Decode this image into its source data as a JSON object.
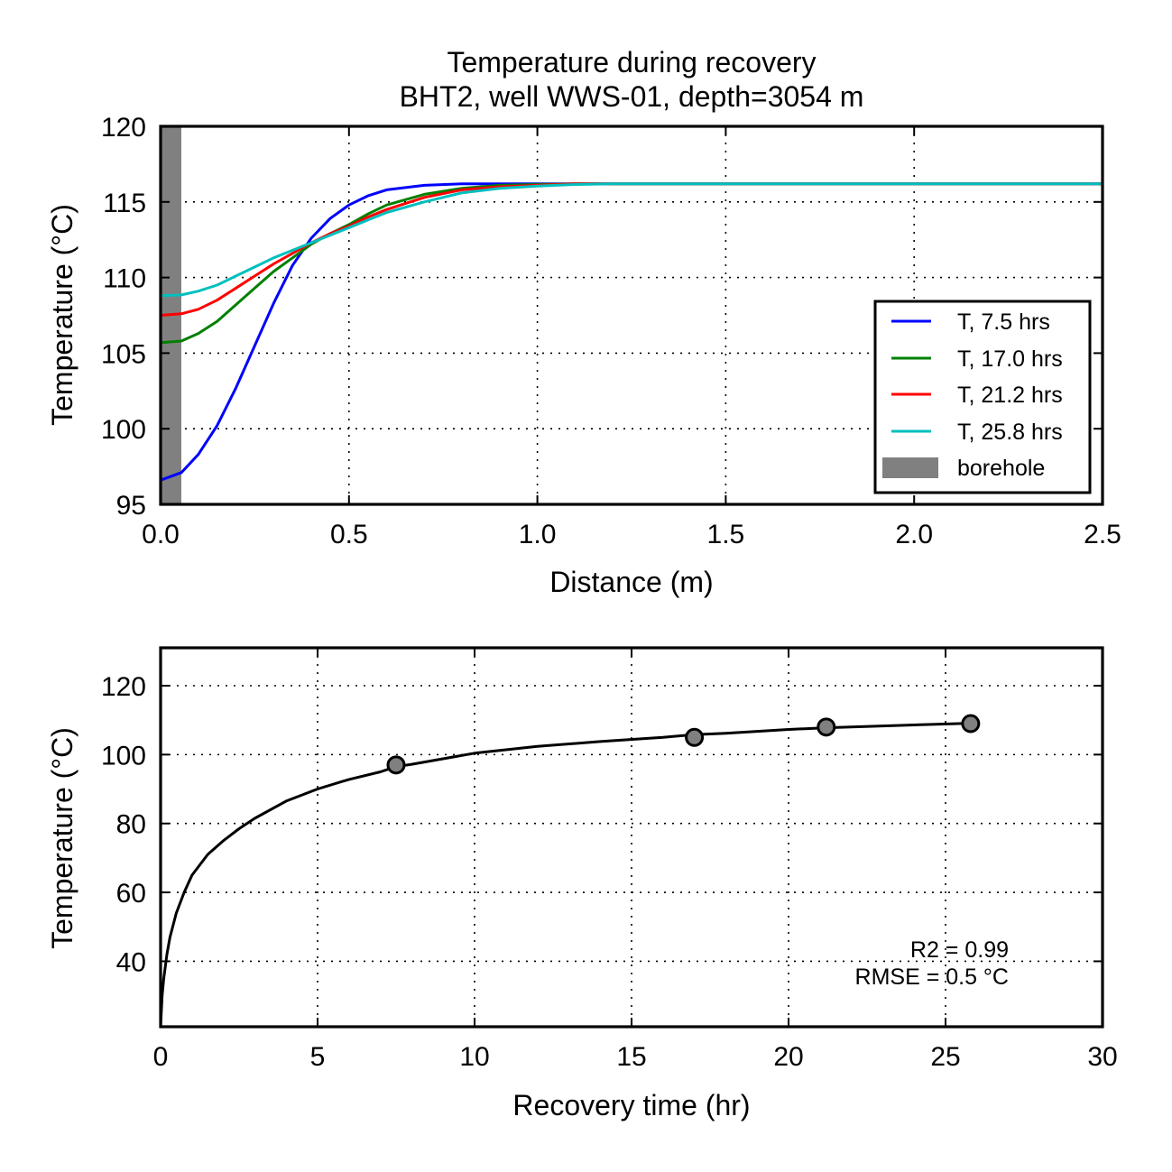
{
  "chart_data": [
    {
      "type": "line",
      "title": "Temperature during recovery",
      "subtitle": "BHT2, well WWS-01, depth=3054 m",
      "xlabel": "Distance (m)",
      "ylabel": "Temperature (°C)",
      "xlim": [
        0,
        2.5
      ],
      "ylim": [
        95,
        120
      ],
      "xticks": [
        "0.0",
        "0.5",
        "1.0",
        "1.5",
        "2.0",
        "2.5"
      ],
      "yticks": [
        "95",
        "100",
        "105",
        "110",
        "115",
        "120"
      ],
      "grid": true,
      "legend_position": "right-center",
      "borehole": {
        "name": "borehole",
        "x_range": [
          0,
          0.055
        ],
        "color": "#808080"
      },
      "series": [
        {
          "name": "T, 7.5 hrs",
          "color": "#0000ff",
          "x": [
            0,
            0.055,
            0.1,
            0.15,
            0.2,
            0.25,
            0.3,
            0.35,
            0.4,
            0.45,
            0.5,
            0.55,
            0.6,
            0.7,
            0.8,
            0.9,
            1.0,
            1.5,
            2.0,
            2.5
          ],
          "y": [
            96.6,
            97.1,
            98.3,
            100.2,
            102.7,
            105.5,
            108.3,
            110.8,
            112.6,
            113.9,
            114.8,
            115.4,
            115.8,
            116.1,
            116.2,
            116.2,
            116.2,
            116.2,
            116.2,
            116.2
          ]
        },
        {
          "name": "T, 17.0 hrs",
          "color": "#008000",
          "x": [
            0,
            0.055,
            0.1,
            0.15,
            0.2,
            0.25,
            0.3,
            0.35,
            0.4,
            0.45,
            0.5,
            0.55,
            0.6,
            0.7,
            0.8,
            0.9,
            1.0,
            1.1,
            1.2,
            1.5,
            2.0,
            2.5
          ],
          "y": [
            105.7,
            105.8,
            106.3,
            107.1,
            108.2,
            109.3,
            110.4,
            111.3,
            112.2,
            112.9,
            113.5,
            114.2,
            114.8,
            115.5,
            115.9,
            116.1,
            116.15,
            116.2,
            116.2,
            116.2,
            116.2,
            116.2
          ]
        },
        {
          "name": "T, 21.2 hrs",
          "color": "#ff0000",
          "x": [
            0,
            0.055,
            0.1,
            0.15,
            0.2,
            0.25,
            0.3,
            0.35,
            0.4,
            0.45,
            0.5,
            0.55,
            0.6,
            0.7,
            0.8,
            0.9,
            1.0,
            1.1,
            1.2,
            1.5,
            2.0,
            2.5
          ],
          "y": [
            107.5,
            107.6,
            107.9,
            108.5,
            109.3,
            110.1,
            110.9,
            111.6,
            112.3,
            112.9,
            113.4,
            114.0,
            114.5,
            115.3,
            115.8,
            116.0,
            116.1,
            116.2,
            116.2,
            116.2,
            116.2,
            116.2
          ]
        },
        {
          "name": "T, 25.8 hrs",
          "color": "#00bfbf",
          "x": [
            0,
            0.055,
            0.1,
            0.15,
            0.2,
            0.25,
            0.3,
            0.35,
            0.4,
            0.45,
            0.5,
            0.55,
            0.6,
            0.7,
            0.8,
            0.9,
            1.0,
            1.1,
            1.2,
            1.3,
            1.5,
            2.0,
            2.5
          ],
          "y": [
            108.8,
            108.85,
            109.1,
            109.5,
            110.1,
            110.7,
            111.3,
            111.8,
            112.3,
            112.8,
            113.3,
            113.8,
            114.3,
            115.0,
            115.6,
            115.9,
            116.05,
            116.15,
            116.2,
            116.2,
            116.2,
            116.2,
            116.2
          ]
        }
      ]
    },
    {
      "type": "line",
      "xlabel": "Recovery time (hr)",
      "ylabel": "Temperature (°C)",
      "xlim": [
        0,
        30
      ],
      "ylim": [
        21,
        131
      ],
      "xticks": [
        "0",
        "5",
        "10",
        "15",
        "20",
        "25",
        "30"
      ],
      "yticks": [
        "40",
        "60",
        "80",
        "100",
        "120"
      ],
      "grid": true,
      "fit_curve": {
        "color": "#000000",
        "x": [
          0,
          0.05,
          0.1,
          0.2,
          0.3,
          0.5,
          0.75,
          1,
          1.5,
          2,
          2.5,
          3,
          4,
          5,
          6,
          7,
          7.5,
          8,
          10,
          12,
          14,
          16,
          17,
          18,
          20,
          21.2,
          22,
          24,
          25.8
        ],
        "y": [
          21,
          30,
          35,
          42,
          47,
          54,
          60,
          65,
          71,
          75,
          78.5,
          81.5,
          86.5,
          90,
          92.8,
          95,
          96.5,
          97.2,
          100.4,
          102.4,
          103.8,
          105,
          105.8,
          106.2,
          107.3,
          107.8,
          108,
          108.6,
          109.1
        ]
      },
      "points": {
        "color": "#808080",
        "x": [
          7.5,
          17.0,
          21.2,
          25.8
        ],
        "y": [
          97,
          105,
          108,
          109
        ]
      },
      "annotations": [
        "R2 = 0.99",
        "RMSE = 0.5 °C"
      ]
    }
  ]
}
